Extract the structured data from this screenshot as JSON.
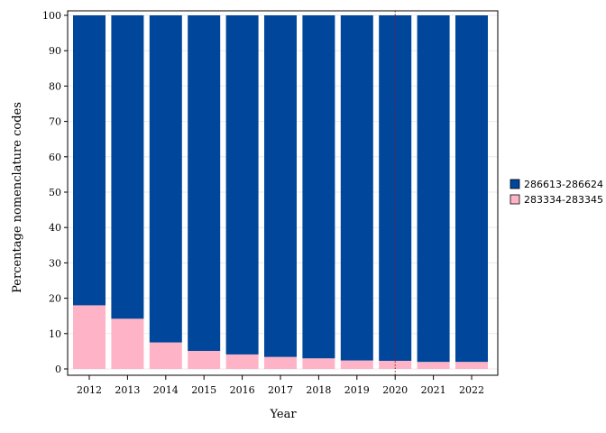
{
  "chart_data": {
    "type": "bar",
    "stacked": true,
    "categories": [
      "2012",
      "2013",
      "2014",
      "2015",
      "2016",
      "2017",
      "2018",
      "2019",
      "2020",
      "2021",
      "2022"
    ],
    "series": [
      {
        "name": "283334-283345",
        "color": "#ffb3c6",
        "values": [
          18.0,
          14.2,
          7.5,
          5.1,
          4.1,
          3.4,
          3.0,
          2.4,
          2.3,
          2.0,
          2.0
        ]
      },
      {
        "name": "286613-286624",
        "color": "#00479b",
        "values": [
          82.0,
          85.8,
          92.5,
          94.9,
          95.9,
          96.6,
          97.0,
          97.6,
          97.7,
          98.0,
          98.0
        ]
      }
    ],
    "legend_order": [
      "286613-286624",
      "283334-283345"
    ],
    "title": "",
    "xlabel": "Year",
    "ylabel": "Percentage nomenclature codes",
    "ylim": [
      0,
      100
    ],
    "yticks": [
      0,
      10,
      20,
      30,
      40,
      50,
      60,
      70,
      80,
      90,
      100
    ],
    "grid": true,
    "reference_line": {
      "x": "2020",
      "style": "dotted"
    },
    "legend_position": "right"
  }
}
